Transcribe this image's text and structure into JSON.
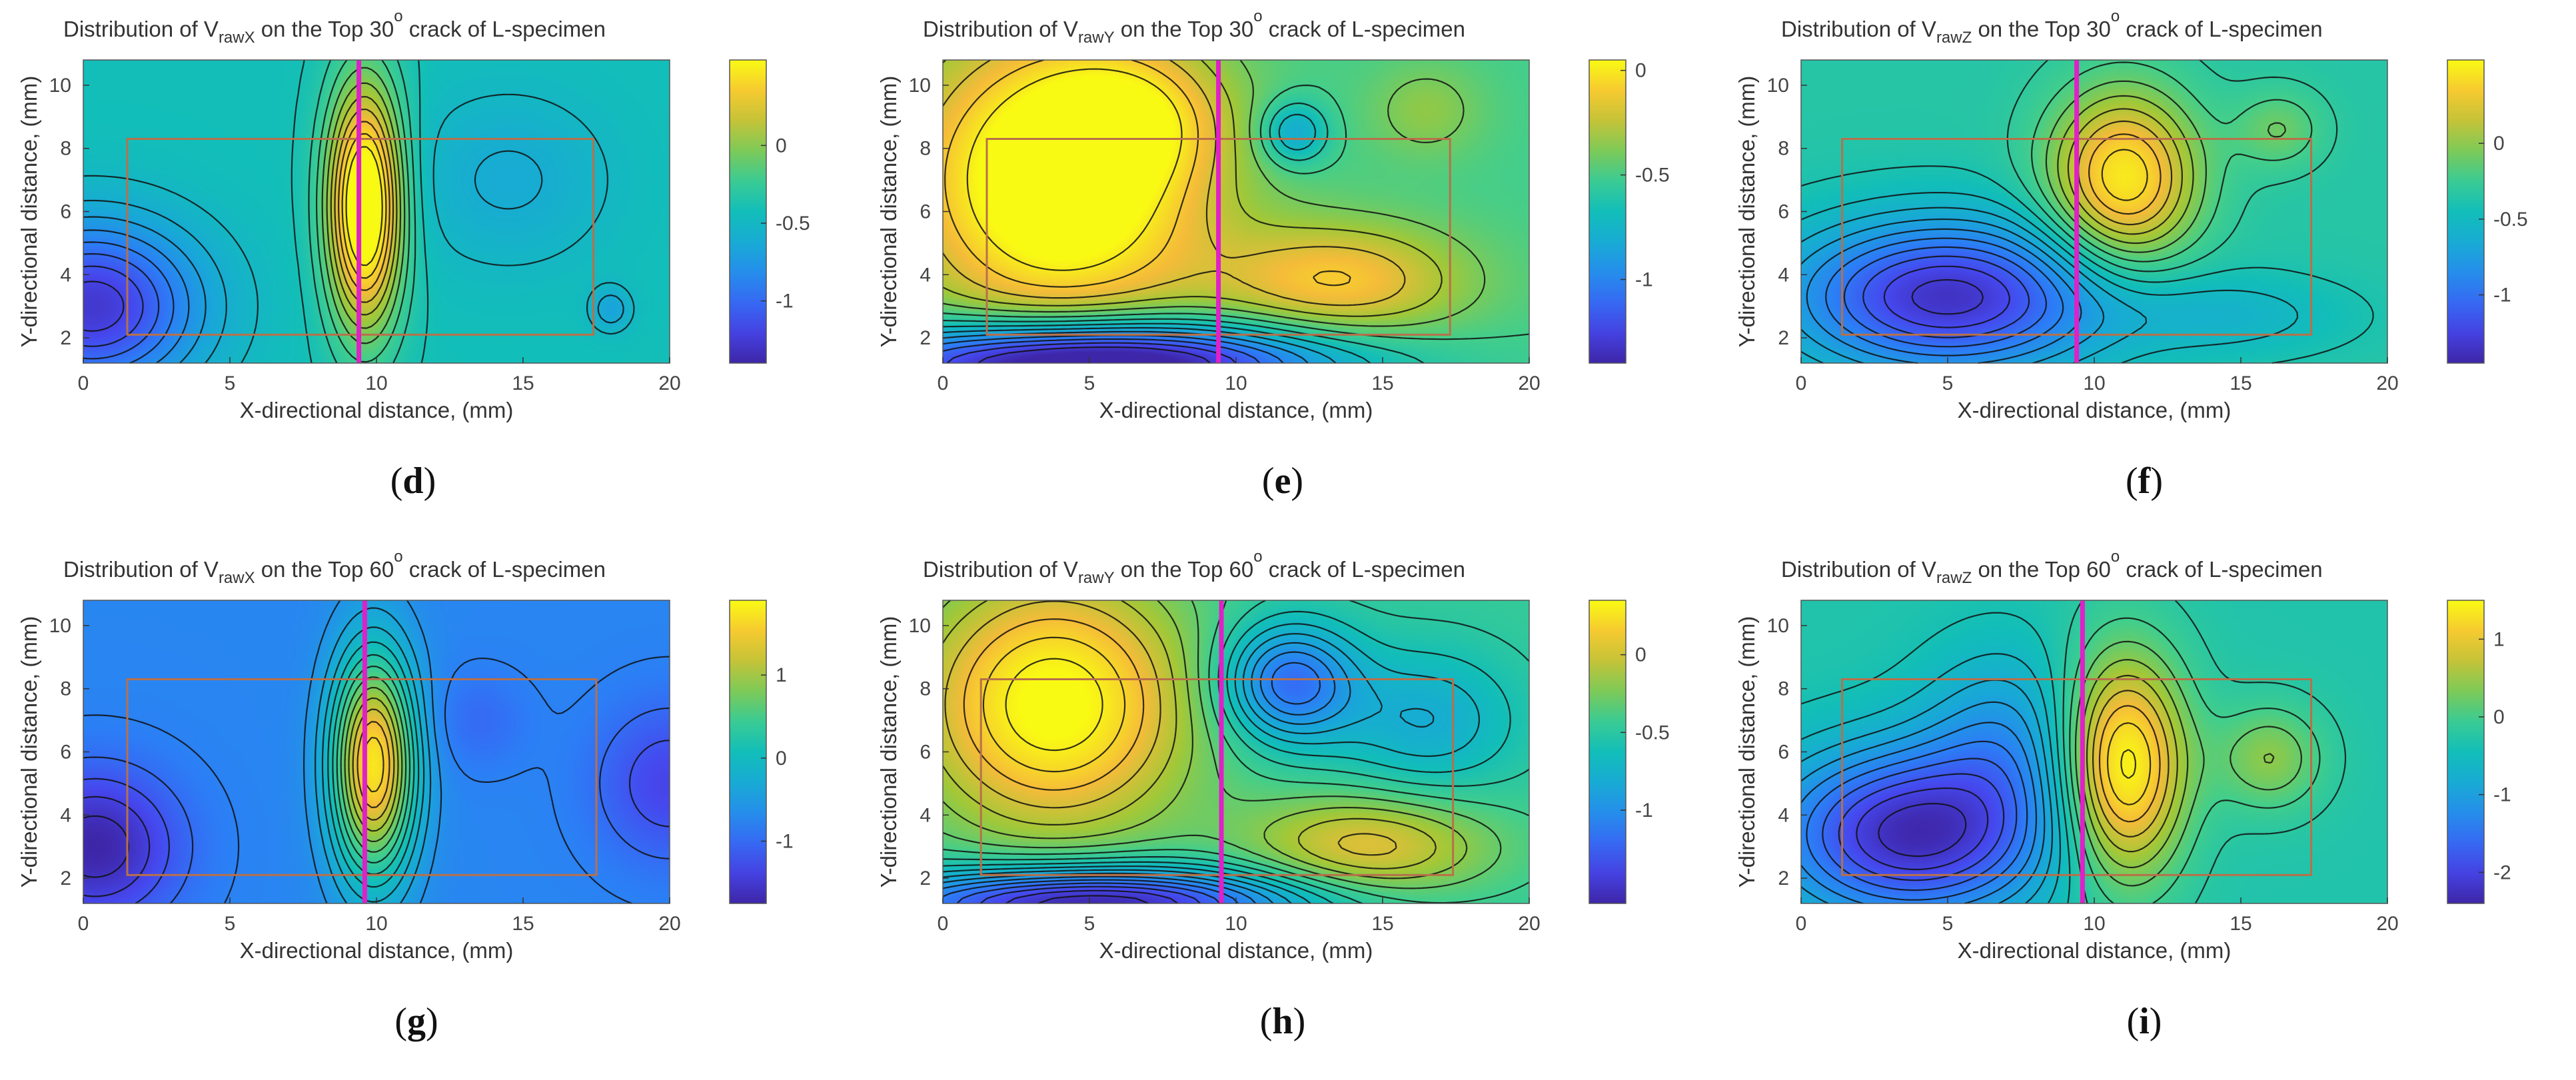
{
  "figure": {
    "panels": [
      {
        "letter": "d",
        "title_pre": "Distribution of V",
        "title_sub": "rawX",
        "title_post": " on the Top 30",
        "title_sup": "o",
        "title_end": " crack of L-specimen"
      },
      {
        "letter": "e",
        "title_pre": "Distribution of V",
        "title_sub": "rawY",
        "title_post": " on the Top 30",
        "title_sup": "o",
        "title_end": " crack of L-specimen"
      },
      {
        "letter": "f",
        "title_pre": "Distribution of V",
        "title_sub": "rawZ",
        "title_post": " on the Top 30",
        "title_sup": "o",
        "title_end": " crack of L-specimen"
      },
      {
        "letter": "g",
        "title_pre": "Distribution of V",
        "title_sub": "rawX",
        "title_post": " on the Top 60",
        "title_sup": "o",
        "title_end": " crack of L-specimen"
      },
      {
        "letter": "h",
        "title_pre": "Distribution of V",
        "title_sub": "rawY",
        "title_post": " on the Top 60",
        "title_sup": "o",
        "title_end": " crack of L-specimen"
      },
      {
        "letter": "i",
        "title_pre": "Distribution of V",
        "title_sub": "rawZ",
        "title_post": " on the Top 60",
        "title_sup": "o",
        "title_end": " crack of L-specimen"
      }
    ]
  },
  "chart_data": [
    {
      "type": "heatmap",
      "subtype": "contour",
      "title": "Distribution of VrawX on the Top 30o crack of L-specimen",
      "xlabel": "X-directional distance, (mm)",
      "ylabel": "Y-directional distance, (mm)",
      "xlim": [
        0,
        20
      ],
      "ylim": [
        1.2,
        10.8
      ],
      "xticks": [
        "0",
        "5",
        "10",
        "15",
        "20"
      ],
      "yticks": [
        "2",
        "4",
        "6",
        "8",
        "10"
      ],
      "colorbar": {
        "min": -1.4,
        "max": 0.55,
        "ticks": [
          {
            "v": 0,
            "label": "0"
          },
          {
            "v": -0.5,
            "label": "-0.5"
          },
          {
            "v": -1,
            "label": "-1"
          }
        ]
      },
      "crack_line_x": 9.4,
      "region": {
        "x0": 1.5,
        "x1": 17.4,
        "y0": 2.1,
        "y1": 8.3
      },
      "peaks": [
        {
          "x": 9.6,
          "y": 6.2,
          "sx": 0.9,
          "sy": 2.7,
          "a": 1.2
        },
        {
          "x": 0.3,
          "y": 3.0,
          "sx": 2.6,
          "sy": 1.9,
          "a": -0.85
        },
        {
          "x": 14.5,
          "y": 7.0,
          "sx": 2.5,
          "sy": 2.0,
          "a": -0.2
        },
        {
          "x": 18.0,
          "y": 2.9,
          "sx": 0.5,
          "sy": 0.5,
          "a": -0.25
        }
      ],
      "base": -0.42,
      "contour_step": 0.1
    },
    {
      "type": "heatmap",
      "subtype": "contour",
      "title": "Distribution of VrawY on the Top 30o crack of L-specimen",
      "xlabel": "X-directional distance, (mm)",
      "ylabel": "Y-directional distance, (mm)",
      "xlim": [
        0,
        20
      ],
      "ylim": [
        1.2,
        10.8
      ],
      "xticks": [
        "0",
        "5",
        "10",
        "15",
        "20"
      ],
      "yticks": [
        "2",
        "4",
        "6",
        "8",
        "10"
      ],
      "colorbar": {
        "min": -1.4,
        "max": 0.05,
        "ticks": [
          {
            "v": 0,
            "label": "0"
          },
          {
            "v": -0.5,
            "label": "-0.5"
          },
          {
            "v": -1,
            "label": "-1"
          }
        ]
      },
      "crack_line_x": 9.4,
      "region": {
        "x0": 1.5,
        "x1": 17.3,
        "y0": 2.1,
        "y1": 8.3
      },
      "peaks": [
        {
          "x": 4.0,
          "y": 7.0,
          "sx": 3.5,
          "sy": 3.2,
          "a": 0.75
        },
        {
          "x": 6.5,
          "y": 9.0,
          "sx": 2.0,
          "sy": 1.4,
          "a": 0.25
        },
        {
          "x": 13.5,
          "y": 3.8,
          "sx": 3.0,
          "sy": 1.3,
          "a": 0.4
        },
        {
          "x": 5.0,
          "y": 1.2,
          "sx": 5.5,
          "sy": 0.9,
          "a": -1.15
        },
        {
          "x": 12.0,
          "y": 8.5,
          "sx": 0.8,
          "sy": 0.7,
          "a": -0.35
        },
        {
          "x": 16.5,
          "y": 9.2,
          "sx": 1.4,
          "sy": 1.1,
          "a": 0.15
        }
      ],
      "base": -0.5,
      "contour_step": 0.1
    },
    {
      "type": "heatmap",
      "subtype": "contour",
      "title": "Distribution of VrawZ on the Top 30o crack of L-specimen",
      "xlabel": "X-directional distance, (mm)",
      "ylabel": "Y-directional distance, (mm)",
      "xlim": [
        0,
        20
      ],
      "ylim": [
        1.2,
        10.8
      ],
      "xticks": [
        "0",
        "5",
        "10",
        "15",
        "20"
      ],
      "yticks": [
        "2",
        "4",
        "6",
        "8",
        "10"
      ],
      "colorbar": {
        "min": -1.45,
        "max": 0.55,
        "ticks": [
          {
            "v": 0,
            "label": "0"
          },
          {
            "v": -0.5,
            "label": "-0.5"
          },
          {
            "v": -1,
            "label": "-1"
          }
        ]
      },
      "crack_line_x": 9.4,
      "region": {
        "x0": 1.4,
        "x1": 17.4,
        "y0": 2.1,
        "y1": 8.3
      },
      "peaks": [
        {
          "x": 5.0,
          "y": 3.3,
          "sx": 3.8,
          "sy": 1.7,
          "a": -1.0
        },
        {
          "x": 11.0,
          "y": 7.0,
          "sx": 1.8,
          "sy": 2.0,
          "a": 0.85
        },
        {
          "x": 16.3,
          "y": 8.6,
          "sx": 1.1,
          "sy": 0.9,
          "a": 0.25
        },
        {
          "x": 14.5,
          "y": 2.7,
          "sx": 3.0,
          "sy": 0.9,
          "a": -0.2
        }
      ],
      "base": -0.35,
      "contour_step": 0.1
    },
    {
      "type": "heatmap",
      "subtype": "contour",
      "title": "Distribution of VrawX on the Top 60o crack of L-specimen",
      "xlabel": "X-directional distance, (mm)",
      "ylabel": "Y-directional distance, (mm)",
      "xlim": [
        0,
        20
      ],
      "ylim": [
        1.2,
        10.8
      ],
      "xticks": [
        "0",
        "5",
        "10",
        "15",
        "20"
      ],
      "yticks": [
        "2",
        "4",
        "6",
        "8",
        "10"
      ],
      "colorbar": {
        "min": -1.75,
        "max": 1.9,
        "ticks": [
          {
            "v": 1,
            "label": "1"
          },
          {
            "v": 0,
            "label": "0"
          },
          {
            "v": -1,
            "label": "-1"
          }
        ]
      },
      "crack_line_x": 9.6,
      "region": {
        "x0": 1.5,
        "x1": 17.5,
        "y0": 2.1,
        "y1": 8.3
      },
      "peaks": [
        {
          "x": 9.9,
          "y": 5.6,
          "sx": 1.0,
          "sy": 2.5,
          "a": 2.5
        },
        {
          "x": 0.4,
          "y": 3.0,
          "sx": 2.0,
          "sy": 1.7,
          "a": -1.0
        },
        {
          "x": 20.0,
          "y": 5.0,
          "sx": 1.8,
          "sy": 1.8,
          "a": -0.6
        },
        {
          "x": 13.5,
          "y": 7.0,
          "sx": 1.2,
          "sy": 1.1,
          "a": -0.25
        }
      ],
      "base": -0.75,
      "contour_step": 0.2
    },
    {
      "type": "heatmap",
      "subtype": "contour",
      "title": "Distribution of VrawY on the Top 60o crack of L-specimen",
      "xlabel": "X-directional distance, (mm)",
      "ylabel": "Y-directional distance, (mm)",
      "xlim": [
        0,
        20
      ],
      "ylim": [
        1.2,
        10.8
      ],
      "xticks": [
        "0",
        "5",
        "10",
        "15",
        "20"
      ],
      "yticks": [
        "2",
        "4",
        "6",
        "8",
        "10"
      ],
      "colorbar": {
        "min": -1.6,
        "max": 0.35,
        "ticks": [
          {
            "v": 0,
            "label": "0"
          },
          {
            "v": -0.5,
            "label": "-0.5"
          },
          {
            "v": -1,
            "label": "-1"
          }
        ]
      },
      "crack_line_x": 9.5,
      "region": {
        "x0": 1.3,
        "x1": 17.4,
        "y0": 2.1,
        "y1": 8.3
      },
      "peaks": [
        {
          "x": 3.8,
          "y": 7.5,
          "sx": 3.3,
          "sy": 2.9,
          "a": 0.85
        },
        {
          "x": 14.5,
          "y": 3.0,
          "sx": 3.0,
          "sy": 1.2,
          "a": 0.5
        },
        {
          "x": 11.8,
          "y": 8.2,
          "sx": 1.6,
          "sy": 1.3,
          "a": -0.75
        },
        {
          "x": 5.0,
          "y": 1.2,
          "sx": 5.0,
          "sy": 0.8,
          "a": -1.2
        },
        {
          "x": 16.5,
          "y": 7.0,
          "sx": 2.2,
          "sy": 1.6,
          "a": -0.35
        }
      ],
      "base": -0.45,
      "contour_step": 0.1
    },
    {
      "type": "heatmap",
      "subtype": "contour",
      "title": "Distribution of VrawZ on the Top 60o crack of L-specimen",
      "xlabel": "X-directional distance, (mm)",
      "ylabel": "Y-directional distance, (mm)",
      "xlim": [
        0,
        20
      ],
      "ylim": [
        1.2,
        10.8
      ],
      "xticks": [
        "0",
        "5",
        "10",
        "15",
        "20"
      ],
      "yticks": [
        "2",
        "4",
        "6",
        "8",
        "10"
      ],
      "colorbar": {
        "min": -2.4,
        "max": 1.5,
        "ticks": [
          {
            "v": 1,
            "label": "1"
          },
          {
            "v": 0,
            "label": "0"
          },
          {
            "v": -1,
            "label": "-1"
          },
          {
            "v": -2,
            "label": "-2"
          }
        ]
      },
      "crack_line_x": 9.6,
      "region": {
        "x0": 1.4,
        "x1": 17.4,
        "y0": 2.1,
        "y1": 8.3
      },
      "peaks": [
        {
          "x": 3.8,
          "y": 3.4,
          "sx": 3.3,
          "sy": 1.9,
          "a": -2.0
        },
        {
          "x": 7.0,
          "y": 6.5,
          "sx": 2.0,
          "sy": 2.0,
          "a": -0.7
        },
        {
          "x": 11.0,
          "y": 5.5,
          "sx": 1.5,
          "sy": 2.5,
          "a": 1.9
        },
        {
          "x": 16.0,
          "y": 5.8,
          "sx": 1.3,
          "sy": 1.2,
          "a": 0.7
        }
      ],
      "base": -0.3,
      "contour_step": 0.2
    }
  ]
}
